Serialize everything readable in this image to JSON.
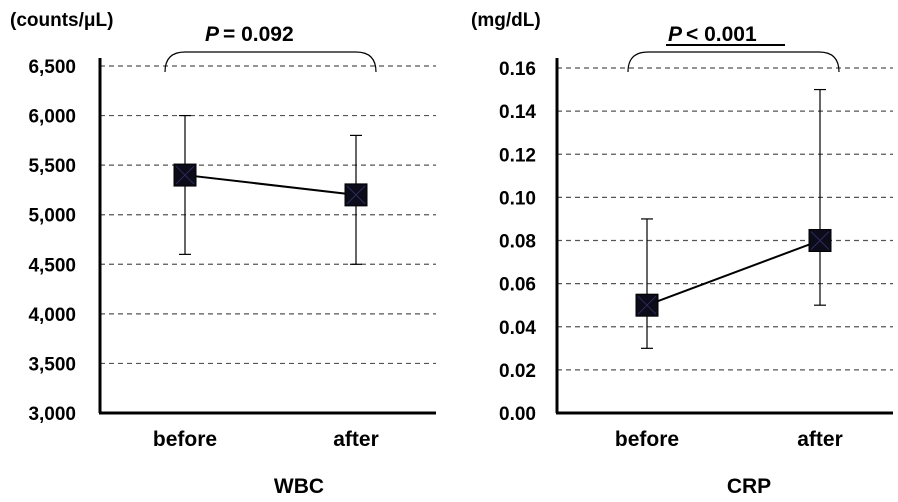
{
  "chart_data": [
    {
      "type": "line",
      "title": "WBC",
      "ylabel": "(counts/μL)",
      "categories": [
        "before",
        "after"
      ],
      "series": [
        {
          "values": [
            5400,
            5200
          ],
          "error_low": [
            4600,
            4500
          ],
          "error_high": [
            6000,
            5800
          ]
        }
      ],
      "ylim": [
        3000,
        6500
      ],
      "yticks": [
        "3,000",
        "3,500",
        "4,000",
        "4,500",
        "5,000",
        "5,500",
        "6,000",
        "6,500"
      ],
      "grid": true,
      "annotation": {
        "p_label": "P",
        "p_text": "= 0.092"
      }
    },
    {
      "type": "line",
      "title": "CRP",
      "ylabel": "(mg/dL)",
      "categories": [
        "before",
        "after"
      ],
      "series": [
        {
          "values": [
            0.05,
            0.08
          ],
          "error_low": [
            0.03,
            0.05
          ],
          "error_high": [
            0.09,
            0.15
          ]
        }
      ],
      "ylim": [
        0,
        0.16
      ],
      "yticks": [
        "0.00",
        "0.02",
        "0.04",
        "0.06",
        "0.08",
        "0.10",
        "0.12",
        "0.14",
        "0.16"
      ],
      "grid": true,
      "annotation": {
        "p_label": "P",
        "p_text": "< 0.001"
      }
    }
  ]
}
